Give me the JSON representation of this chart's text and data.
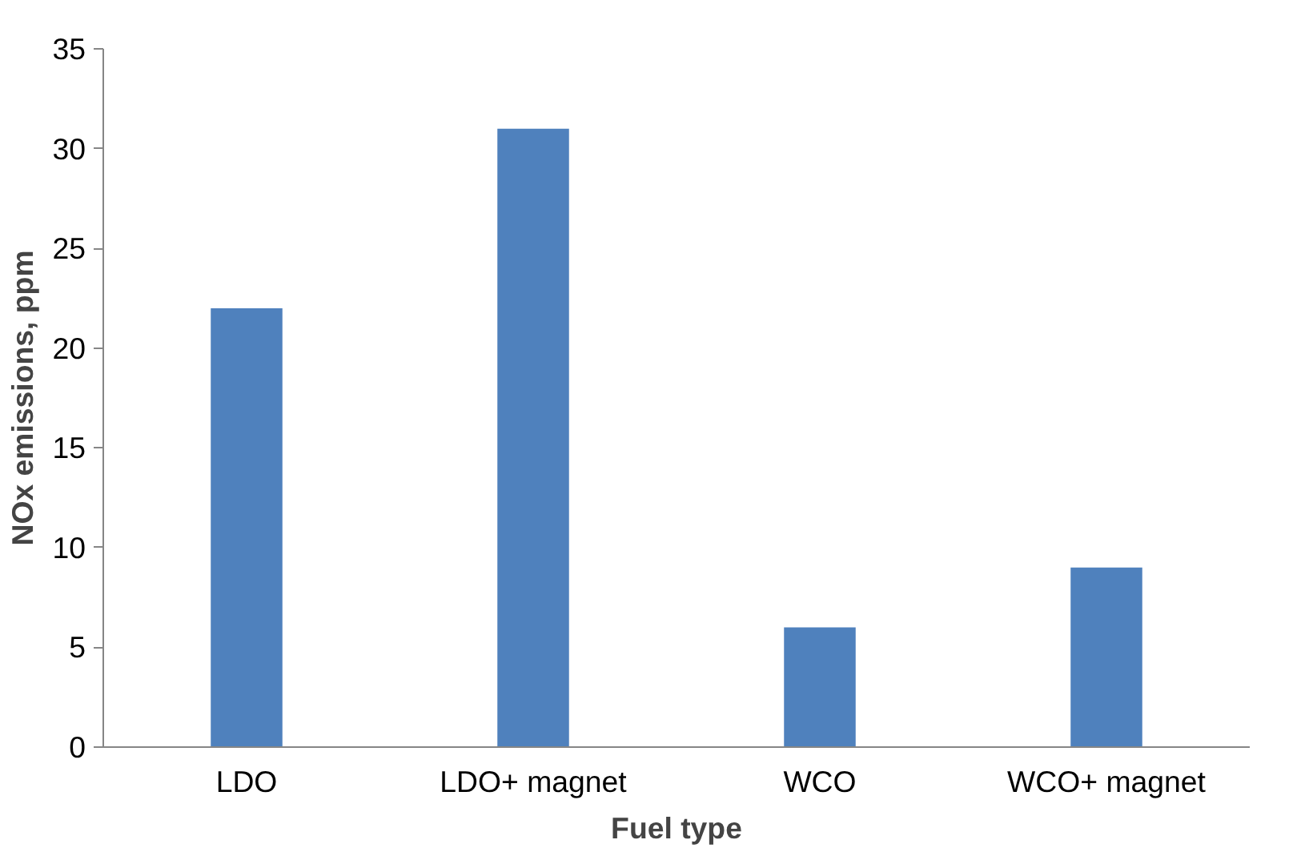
{
  "chart_data": {
    "type": "bar",
    "xlabel": "Fuel type",
    "ylabel": "NOx emissions, ppm",
    "categories": [
      "LDO",
      "LDO+ magnet",
      "WCO",
      "WCO+ magnet"
    ],
    "values": [
      22,
      31,
      6,
      9
    ],
    "color": "#4f81bd",
    "ylim": [
      0,
      35
    ],
    "yticks": [
      0,
      5,
      10,
      15,
      20,
      25,
      30,
      35
    ]
  }
}
